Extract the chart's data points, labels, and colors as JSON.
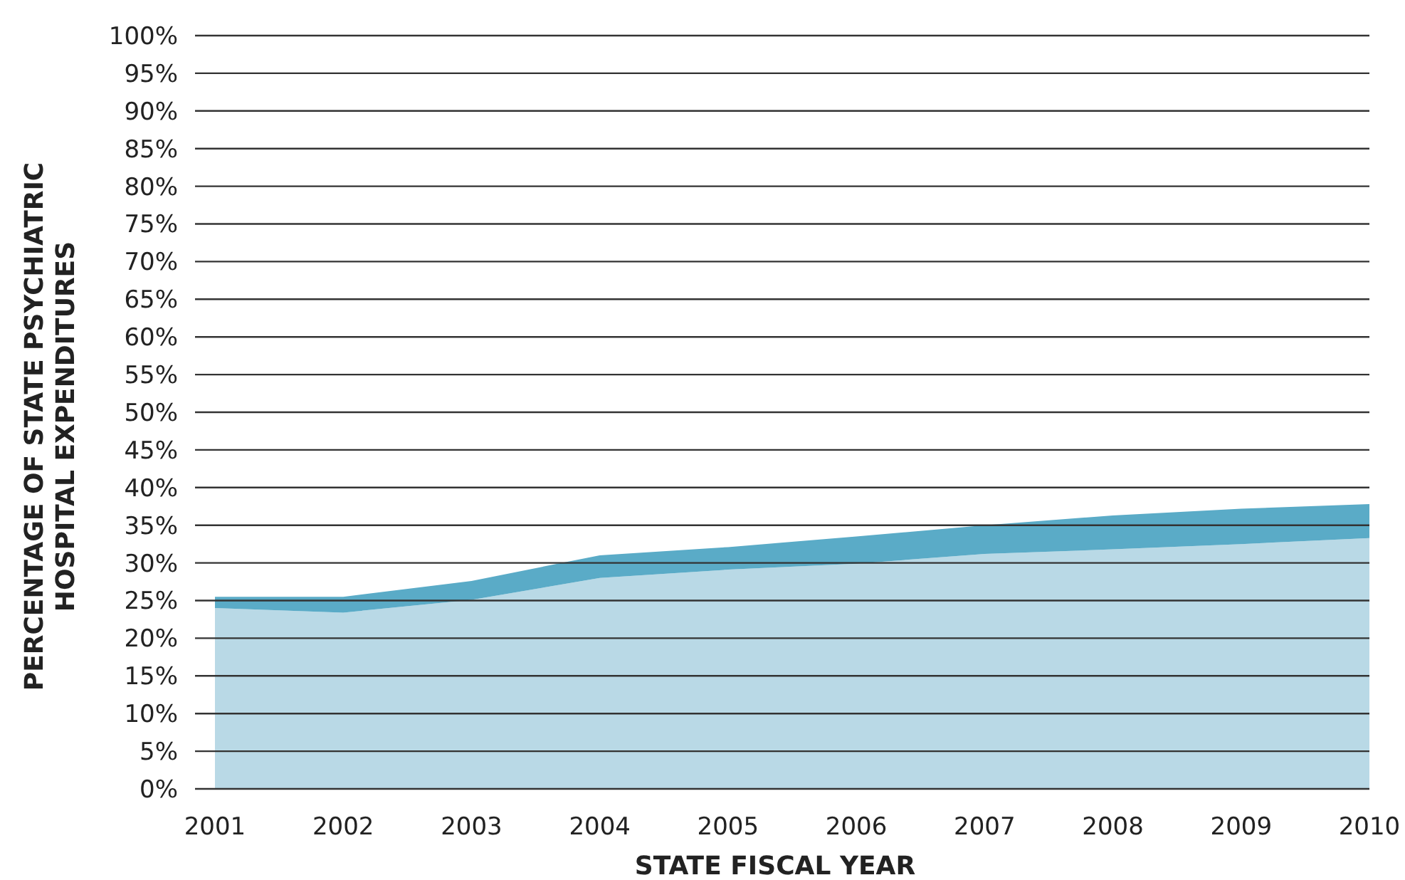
{
  "chart_data": {
    "type": "area",
    "stacked": true,
    "xlabel": "STATE FISCAL YEAR",
    "ylabel": "PERCENTAGE OF STATE PSYCHIATRIC\nHOSPITAL EXPENDITURES",
    "categories": [
      "2001",
      "2002",
      "2003",
      "2004",
      "2005",
      "2006",
      "2007",
      "2008",
      "2009",
      "2010"
    ],
    "series": [
      {
        "color": "#b9d9e6",
        "values": [
          24.0,
          23.4,
          25.1,
          28.0,
          29.1,
          29.9,
          31.2,
          31.8,
          32.5,
          33.3
        ]
      },
      {
        "color": "#5aabc7",
        "values": [
          1.5,
          2.1,
          2.5,
          3.0,
          3.0,
          3.6,
          3.8,
          4.5,
          4.7,
          4.5
        ]
      }
    ],
    "ylim": [
      0,
      100
    ],
    "yticks": [
      {
        "value": 0,
        "label": "0%"
      },
      {
        "value": 5,
        "label": "5%"
      },
      {
        "value": 10,
        "label": "10%"
      },
      {
        "value": 15,
        "label": "15%"
      },
      {
        "value": 20,
        "label": "20%"
      },
      {
        "value": 25,
        "label": "25%"
      },
      {
        "value": 30,
        "label": "30%"
      },
      {
        "value": 35,
        "label": "35%"
      },
      {
        "value": 40,
        "label": "40%"
      },
      {
        "value": 45,
        "label": "45%"
      },
      {
        "value": 50,
        "label": "50%"
      },
      {
        "value": 55,
        "label": "55%"
      },
      {
        "value": 60,
        "label": "60%"
      },
      {
        "value": 65,
        "label": "65%"
      },
      {
        "value": 70,
        "label": "70%"
      },
      {
        "value": 75,
        "label": "75%"
      },
      {
        "value": 80,
        "label": "80%"
      },
      {
        "value": 85,
        "label": "85%"
      },
      {
        "value": 90,
        "label": "90%"
      },
      {
        "value": 95,
        "label": "95%"
      },
      {
        "value": 100,
        "label": "100%"
      }
    ],
    "grid": "y"
  }
}
